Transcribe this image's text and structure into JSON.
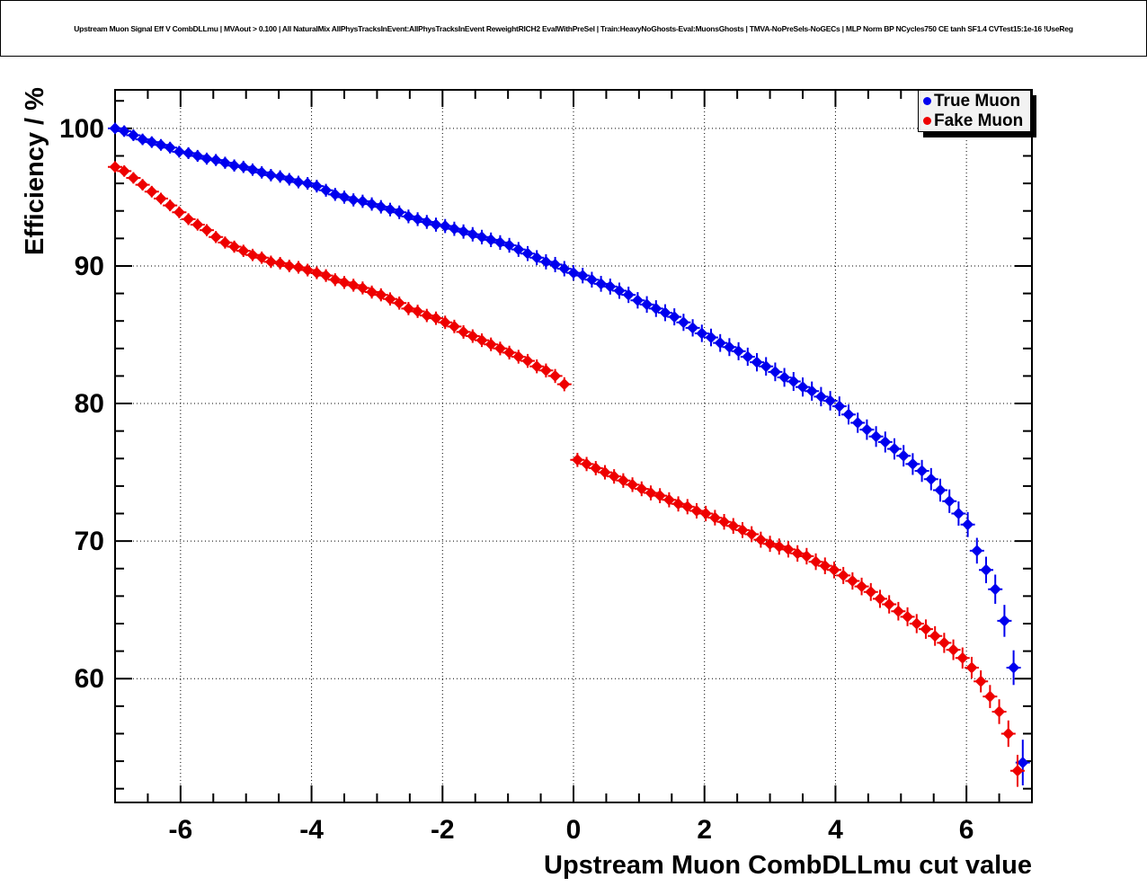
{
  "title": "Upstream Muon Signal Eff V CombDLLmu | MVAout > 0.100 | All NaturalMix AllPhysTracksInEvent:AllPhysTracksInEvent ReweightRICH2 EvalWithPreSel | Train:HeavyNoGhosts-Eval:MuonsGhosts | TMVA-NoPreSels-NoGECs | MLP Norm BP NCycles750 CE tanh SF1.4 CVTest15:1e-16 !UseReg",
  "chart_data": {
    "type": "scatter",
    "title": "Upstream Muon Signal Eff V CombDLLmu | MVAout > 0.100 | All NaturalMix AllPhysTracksInEvent:AllPhysTracksInEvent ReweightRICH2 EvalWithPreSel | Train:HeavyNoGhosts-Eval:MuonsGhosts | TMVA-NoPreSels-NoGECs | MLP Norm BP NCycles750 CE tanh SF1.4 CVTest15:1e-16 !UseReg",
    "xlabel": "Upstream Muon CombDLLmu cut value",
    "ylabel": "Efficiency / %",
    "xlim": [
      -7,
      7
    ],
    "ylim": [
      51.0,
      102.8
    ],
    "x_major_ticks": [
      -6,
      -4,
      -2,
      0,
      2,
      4,
      6
    ],
    "x_tick_labels": [
      "-6",
      "-4",
      "-2",
      "0",
      "2",
      "4",
      "6"
    ],
    "x_minor_step": 0.5,
    "y_major_ticks": [
      60,
      70,
      80,
      90,
      100
    ],
    "y_tick_labels": [
      "60",
      "70",
      "80",
      "90",
      "100"
    ],
    "y_minor_step": 2,
    "grid": "dotted",
    "legend_position": "top-right",
    "series": [
      {
        "name": "True Muon",
        "color": "#0000ee",
        "marker": "diamond",
        "x": [
          -7,
          -6.86,
          -6.72,
          -6.58,
          -6.44,
          -6.3,
          -6.16,
          -6.02,
          -5.88,
          -5.74,
          -5.6,
          -5.46,
          -5.32,
          -5.18,
          -5.04,
          -4.9,
          -4.76,
          -4.62,
          -4.48,
          -4.34,
          -4.2,
          -4.06,
          -3.92,
          -3.78,
          -3.64,
          -3.5,
          -3.36,
          -3.22,
          -3.08,
          -2.94,
          -2.8,
          -2.66,
          -2.52,
          -2.38,
          -2.24,
          -2.1,
          -1.96,
          -1.82,
          -1.68,
          -1.54,
          -1.4,
          -1.26,
          -1.12,
          -0.98,
          -0.84,
          -0.7,
          -0.56,
          -0.42,
          -0.28,
          -0.14,
          0,
          0.14,
          0.28,
          0.42,
          0.56,
          0.7,
          0.84,
          0.98,
          1.12,
          1.26,
          1.4,
          1.54,
          1.68,
          1.82,
          1.96,
          2.1,
          2.24,
          2.38,
          2.52,
          2.66,
          2.8,
          2.94,
          3.08,
          3.22,
          3.36,
          3.5,
          3.64,
          3.78,
          3.92,
          4.06,
          4.2,
          4.34,
          4.48,
          4.62,
          4.76,
          4.9,
          5.04,
          5.18,
          5.32,
          5.46,
          5.6,
          5.74,
          5.88,
          6.02,
          6.16,
          6.3,
          6.44,
          6.58,
          6.72,
          6.86
        ],
        "y": [
          100,
          99.8,
          99.5,
          99.2,
          99,
          98.8,
          98.6,
          98.3,
          98.2,
          98,
          97.8,
          97.7,
          97.5,
          97.3,
          97.2,
          97,
          96.8,
          96.6,
          96.5,
          96.3,
          96.1,
          96,
          95.8,
          95.5,
          95.2,
          95,
          94.8,
          94.7,
          94.5,
          94.3,
          94.1,
          93.9,
          93.6,
          93.4,
          93.2,
          93,
          92.9,
          92.7,
          92.5,
          92.3,
          92.1,
          91.9,
          91.7,
          91.5,
          91.2,
          90.9,
          90.6,
          90.3,
          90.1,
          89.8,
          89.5,
          89.3,
          89,
          88.7,
          88.5,
          88.2,
          87.9,
          87.5,
          87.2,
          86.9,
          86.6,
          86.3,
          85.9,
          85.5,
          85.1,
          84.8,
          84.4,
          84.1,
          83.8,
          83.4,
          83,
          82.7,
          82.3,
          81.9,
          81.6,
          81.2,
          80.9,
          80.5,
          80.2,
          79.8,
          79.2,
          78.6,
          78.1,
          77.6,
          77.2,
          76.7,
          76.2,
          75.6,
          75.1,
          74.5,
          73.7,
          72.9,
          72,
          71.2,
          69.3,
          67.9,
          66.5,
          64.2,
          60.8,
          53.9
        ],
        "yerr_anchors": {
          "x": [
            -7,
            -4,
            0,
            4,
            5.5,
            6.3,
            6.72,
            6.86
          ],
          "e": [
            0.15,
            0.2,
            0.3,
            0.45,
            0.55,
            0.7,
            1.0,
            1.4
          ]
        }
      },
      {
        "name": "Fake Muon",
        "color": "#ee0000",
        "marker": "diamond",
        "x": [
          -7,
          -6.86,
          -6.72,
          -6.58,
          -6.44,
          -6.3,
          -6.16,
          -6.02,
          -5.88,
          -5.74,
          -5.6,
          -5.46,
          -5.32,
          -5.18,
          -5.04,
          -4.9,
          -4.76,
          -4.62,
          -4.48,
          -4.34,
          -4.2,
          -4.06,
          -3.92,
          -3.78,
          -3.64,
          -3.5,
          -3.36,
          -3.22,
          -3.08,
          -2.94,
          -2.8,
          -2.66,
          -2.52,
          -2.38,
          -2.24,
          -2.1,
          -1.96,
          -1.82,
          -1.68,
          -1.54,
          -1.4,
          -1.26,
          -1.12,
          -0.98,
          -0.84,
          -0.7,
          -0.56,
          -0.42,
          -0.28,
          -0.14,
          0.06,
          0.2,
          0.34,
          0.48,
          0.62,
          0.76,
          0.9,
          1.04,
          1.18,
          1.32,
          1.46,
          1.6,
          1.74,
          1.88,
          2.02,
          2.16,
          2.3,
          2.44,
          2.58,
          2.72,
          2.86,
          3,
          3.14,
          3.28,
          3.42,
          3.56,
          3.7,
          3.84,
          3.98,
          4.12,
          4.26,
          4.4,
          4.54,
          4.68,
          4.82,
          4.96,
          5.1,
          5.24,
          5.38,
          5.52,
          5.66,
          5.8,
          5.94,
          6.08,
          6.22,
          6.36,
          6.5,
          6.64,
          6.78
        ],
        "y": [
          97.2,
          96.9,
          96.4,
          95.9,
          95.4,
          94.9,
          94.4,
          93.9,
          93.4,
          93,
          92.6,
          92.1,
          91.7,
          91.4,
          91.1,
          90.8,
          90.6,
          90.3,
          90.2,
          90,
          89.9,
          89.7,
          89.5,
          89.3,
          89,
          88.8,
          88.6,
          88.4,
          88.1,
          87.9,
          87.6,
          87.3,
          86.9,
          86.7,
          86.4,
          86.2,
          85.9,
          85.6,
          85.2,
          84.9,
          84.6,
          84.3,
          84,
          83.7,
          83.4,
          83.1,
          82.7,
          82.4,
          82,
          81.4,
          75.9,
          75.6,
          75.3,
          75,
          74.7,
          74.4,
          74.1,
          73.8,
          73.5,
          73.3,
          73,
          72.7,
          72.5,
          72.2,
          72,
          71.7,
          71.4,
          71.1,
          70.8,
          70.5,
          70.1,
          69.8,
          69.6,
          69.4,
          69.1,
          68.9,
          68.5,
          68.2,
          67.9,
          67.5,
          67.1,
          66.7,
          66.3,
          65.8,
          65.4,
          64.9,
          64.5,
          64,
          63.6,
          63.1,
          62.6,
          62.1,
          61.5,
          60.8,
          59.8,
          58.7,
          57.6,
          56,
          53.3
        ],
        "yerr_anchors": {
          "x": [
            -7,
            -4,
            0,
            4,
            5.5,
            6.3,
            6.64,
            6.78
          ],
          "e": [
            0.15,
            0.2,
            0.25,
            0.35,
            0.45,
            0.55,
            0.7,
            0.9
          ]
        }
      }
    ]
  },
  "legend": {
    "items": [
      {
        "label": "True Muon",
        "color": "#0000ee"
      },
      {
        "label": "Fake Muon",
        "color": "#ee0000"
      }
    ]
  },
  "colors": {
    "frame": "#000000",
    "grid": "#000000",
    "background": "#ffffff",
    "legend_background": "#f2f2f2"
  }
}
